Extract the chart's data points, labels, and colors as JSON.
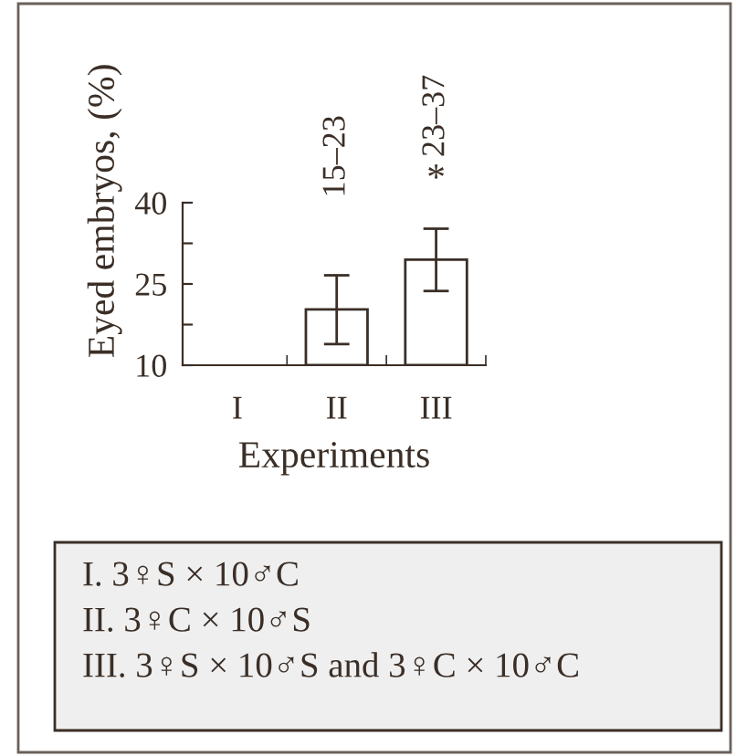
{
  "chart_data": {
    "type": "bar",
    "xlabel": "Experiments",
    "ylabel": "Eyed embryos, (%)",
    "categories": [
      "I",
      "II",
      "III"
    ],
    "series": [
      {
        "color": "#ffffff",
        "values": [
          null,
          20.3,
          29.5
        ],
        "errors": [
          null,
          [
            13.9,
            26.6
          ],
          [
            23.7,
            35.2
          ]
        ]
      }
    ],
    "ylim": [
      10,
      40
    ],
    "yticks": [
      10,
      {
        "value": 17.5,
        "label": null
      },
      25,
      {
        "value": 32.5,
        "label": null
      },
      40
    ],
    "grid": false,
    "legend": false,
    "annotations": [
      "15–23",
      "*",
      "23–37",
      "I. 3♀S × 10♂C",
      "II. 3♀C × 10♂S",
      "III. 3♀S × 10♂S and 3♀C × 10♂C"
    ]
  }
}
